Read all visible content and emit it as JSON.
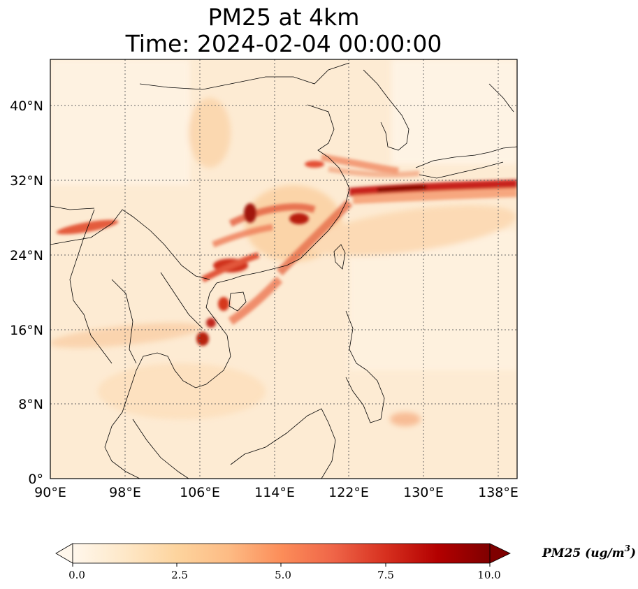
{
  "title": {
    "line1": "PM25 at 4km",
    "line2": "Time: 2024-02-04 00:00:00"
  },
  "map": {
    "lon_range": [
      90,
      140
    ],
    "lat_range": [
      0,
      45
    ],
    "lon_ticks": [
      "90°E",
      "98°E",
      "106°E",
      "114°E",
      "122°E",
      "130°E",
      "138°E"
    ],
    "lat_ticks": [
      "0°",
      "8°N",
      "16°N",
      "24°N",
      "32°N",
      "40°N"
    ],
    "gridlines": true,
    "colormap": "OrRd"
  },
  "colorbar": {
    "label": "PM25 (ug/m",
    "label_superscript": "3",
    "label_close": ")",
    "ticks": [
      "0.0",
      "2.5",
      "5.0",
      "7.5",
      "10.0"
    ],
    "range": [
      0,
      10
    ],
    "extend": "both",
    "colors": [
      "#fff7ec",
      "#fee8c8",
      "#fdd49e",
      "#fdbb84",
      "#fc8d59",
      "#ef6548",
      "#d7301f",
      "#b30000",
      "#7f0000"
    ]
  }
}
